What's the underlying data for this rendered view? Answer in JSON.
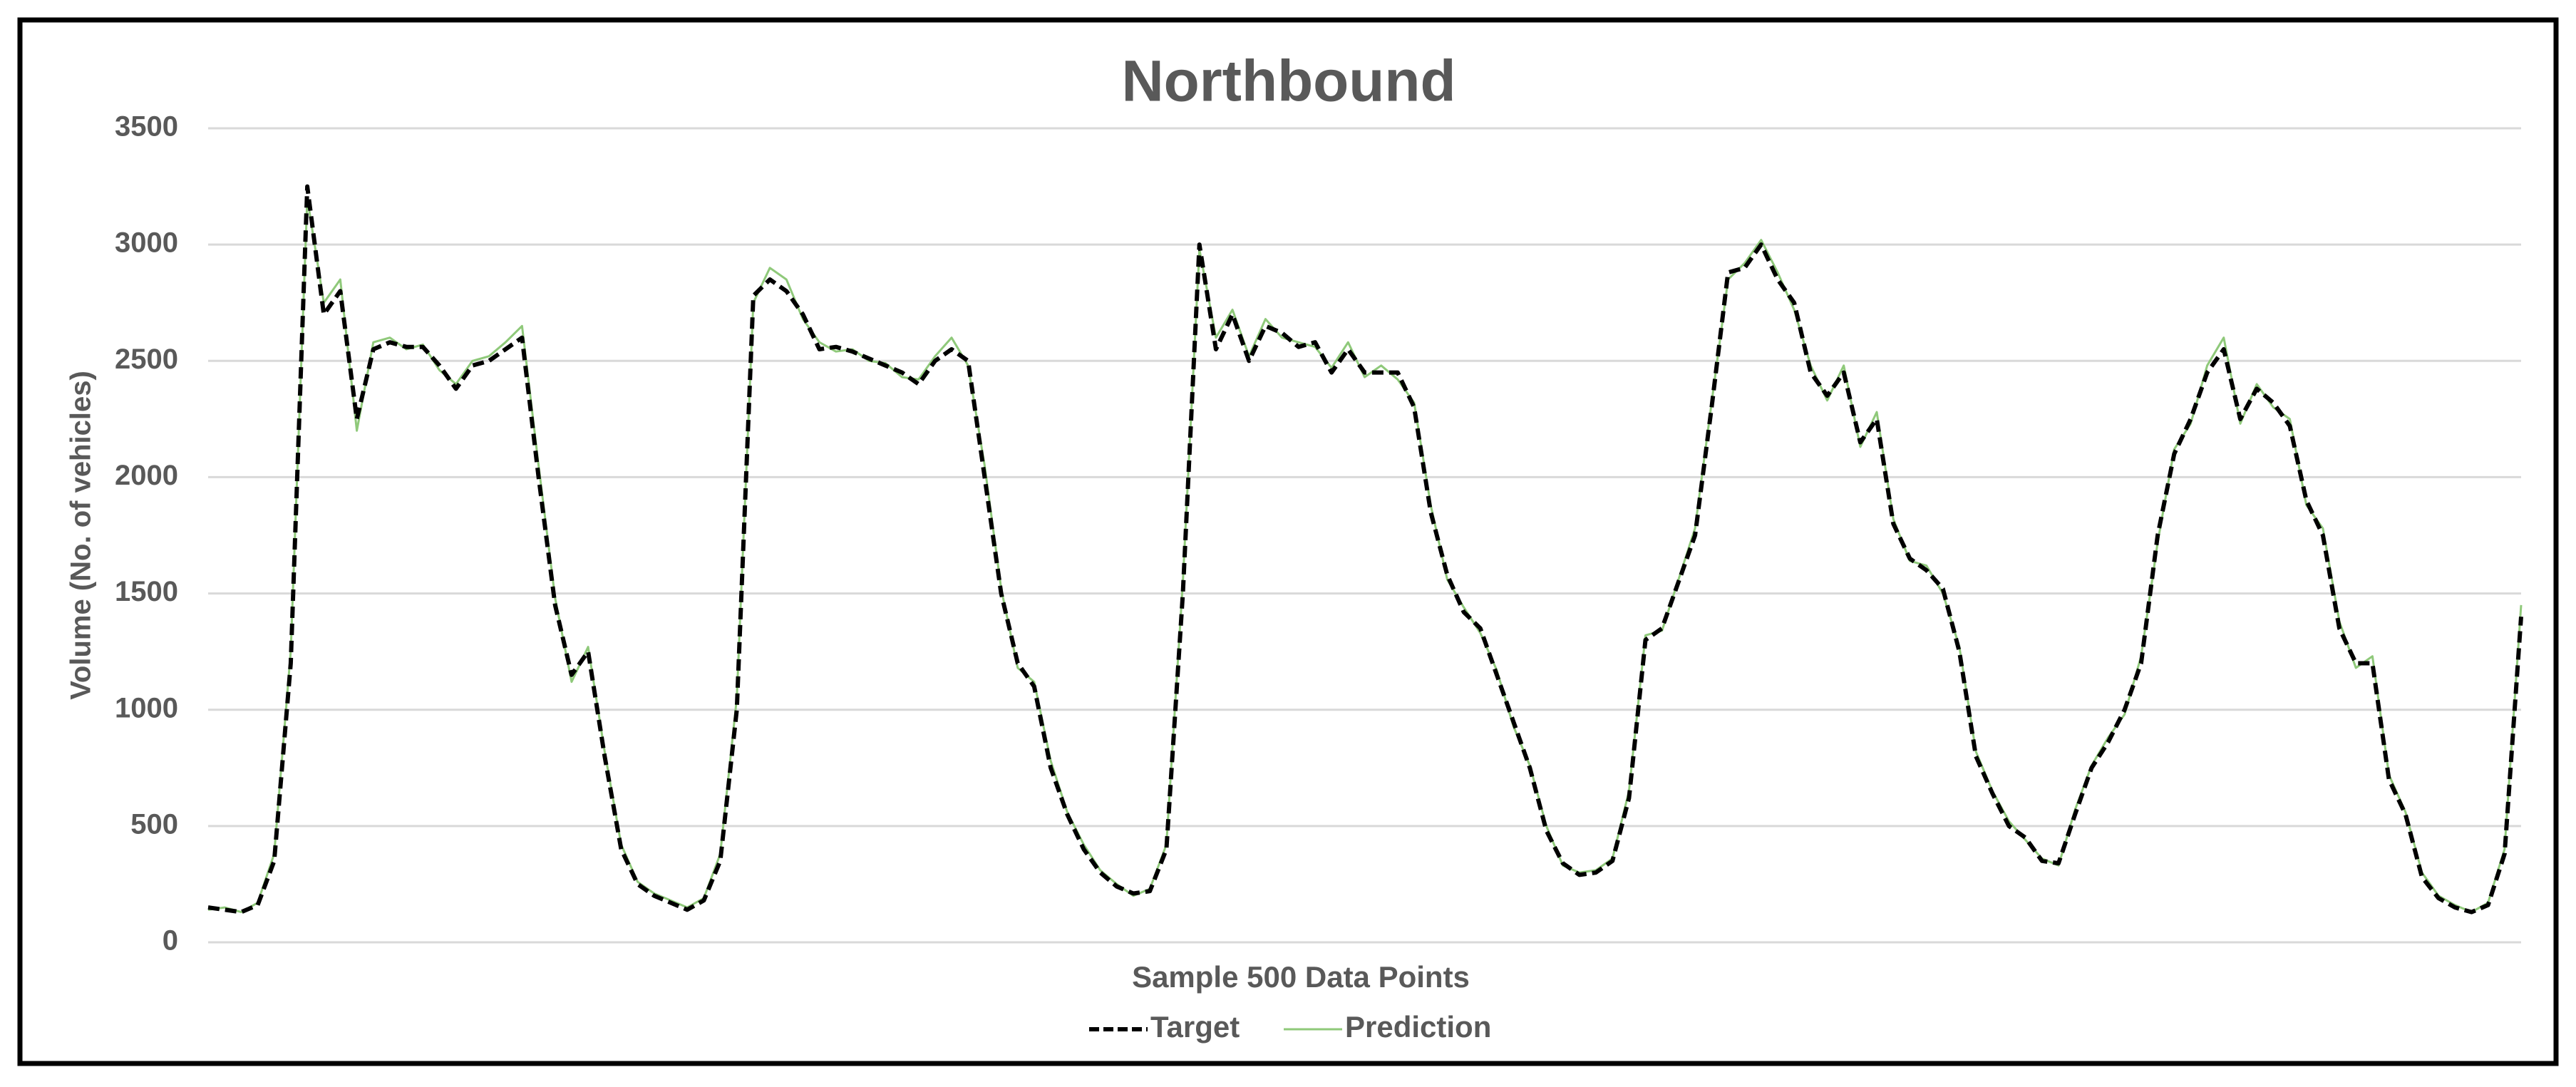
{
  "chart_data": {
    "type": "line",
    "title": "Northbound",
    "xlabel": "Sample 500 Data Points",
    "ylabel": "Volume (No. of vehicles)",
    "ylim": [
      0,
      3500
    ],
    "yticks": [
      0,
      500,
      1000,
      1500,
      2000,
      2500,
      3000,
      3500
    ],
    "grid": true,
    "legend": "bottom",
    "series": [
      {
        "name": "Target",
        "color": "#000000",
        "dash": true,
        "values": [
          150,
          140,
          130,
          160,
          350,
          1200,
          3250,
          2700,
          2800,
          2250,
          2550,
          2580,
          2560,
          2560,
          2480,
          2380,
          2480,
          2500,
          2550,
          2600,
          2000,
          1450,
          1150,
          1250,
          800,
          400,
          250,
          200,
          170,
          140,
          180,
          350,
          1000,
          2780,
          2850,
          2800,
          2700,
          2550,
          2560,
          2540,
          2510,
          2480,
          2450,
          2400,
          2500,
          2550,
          2500,
          2000,
          1500,
          1200,
          1100,
          750,
          550,
          400,
          300,
          240,
          210,
          220,
          400,
          1500,
          3000,
          2550,
          2700,
          2500,
          2650,
          2620,
          2560,
          2580,
          2450,
          2550,
          2450,
          2450,
          2450,
          2300,
          1850,
          1580,
          1420,
          1350,
          1150,
          950,
          750,
          480,
          340,
          290,
          300,
          350,
          620,
          1300,
          1350,
          1550,
          1750,
          2300,
          2880,
          2900,
          3000,
          2850,
          2750,
          2450,
          2350,
          2450,
          2150,
          2250,
          1800,
          1650,
          1600,
          1520,
          1250,
          800,
          640,
          500,
          450,
          350,
          340,
          550,
          750,
          860,
          1000,
          1200,
          1750,
          2100,
          2250,
          2450,
          2550,
          2250,
          2380,
          2320,
          2220,
          1900,
          1750,
          1350,
          1200,
          1200,
          700,
          550,
          280,
          190,
          150,
          130,
          160,
          380,
          1400
        ]
      },
      {
        "name": "Prediction",
        "color": "#8fc97a",
        "dash": false,
        "values": [
          140,
          150,
          130,
          170,
          380,
          1250,
          3200,
          2750,
          2850,
          2200,
          2580,
          2600,
          2550,
          2570,
          2460,
          2400,
          2500,
          2520,
          2580,
          2650,
          2050,
          1480,
          1120,
          1270,
          820,
          420,
          260,
          210,
          180,
          150,
          190,
          380,
          1050,
          2750,
          2900,
          2850,
          2680,
          2580,
          2540,
          2550,
          2500,
          2490,
          2430,
          2420,
          2520,
          2600,
          2480,
          2050,
          1520,
          1180,
          1120,
          780,
          560,
          420,
          310,
          250,
          200,
          230,
          420,
          1550,
          2980,
          2600,
          2720,
          2520,
          2680,
          2600,
          2580,
          2560,
          2470,
          2580,
          2430,
          2480,
          2420,
          2320,
          1880,
          1560,
          1440,
          1330,
          1170,
          930,
          760,
          500,
          330,
          300,
          310,
          360,
          650,
          1320,
          1340,
          1560,
          1780,
          2320,
          2850,
          2920,
          3020,
          2880,
          2720,
          2480,
          2330,
          2480,
          2130,
          2280,
          1820,
          1640,
          1620,
          1500,
          1270,
          820,
          650,
          520,
          440,
          360,
          330,
          570,
          760,
          880,
          980,
          1230,
          1720,
          2120,
          2230,
          2480,
          2600,
          2230,
          2400,
          2300,
          2250,
          1880,
          1780,
          1380,
          1180,
          1230,
          720,
          560,
          300,
          200,
          160,
          130,
          170,
          400,
          1450
        ]
      }
    ]
  }
}
